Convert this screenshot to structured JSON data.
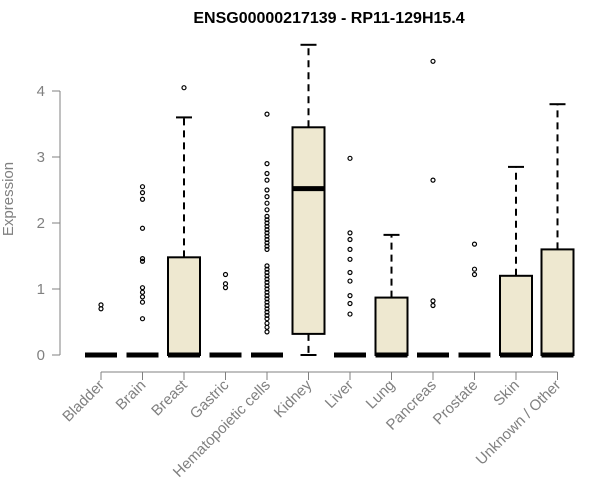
{
  "chart_data": {
    "type": "box",
    "title": "ENSG00000217139 - RP11-129H15.4",
    "xlabel": "",
    "ylabel": "Expression",
    "ylim": [
      0,
      4.7
    ],
    "yticks": [
      0,
      1,
      2,
      3,
      4
    ],
    "grid": false,
    "legend": "none",
    "categories": [
      "Bladder",
      "Brain",
      "Breast",
      "Gastric",
      "Hematopoietic cells",
      "Kidney",
      "Liver",
      "Lung",
      "Pancreas",
      "Prostate",
      "Skin",
      "Unknown / Other"
    ],
    "boxes": [
      {
        "category": "Bladder",
        "q1": 0,
        "median": 0,
        "q3": 0,
        "whisker_low": 0,
        "whisker_high": 0,
        "outliers": [
          0.7,
          0.76
        ]
      },
      {
        "category": "Brain",
        "q1": 0,
        "median": 0,
        "q3": 0,
        "whisker_low": 0,
        "whisker_high": 0,
        "outliers": [
          0.55,
          0.8,
          0.88,
          0.95,
          1.02,
          1.42,
          1.46,
          1.92,
          2.36,
          2.46,
          2.55
        ]
      },
      {
        "category": "Breast",
        "q1": 0,
        "median": 0,
        "q3": 1.48,
        "whisker_low": 0,
        "whisker_high": 3.6,
        "outliers": [
          4.05
        ]
      },
      {
        "category": "Gastric",
        "q1": 0,
        "median": 0,
        "q3": 0,
        "whisker_low": 0,
        "whisker_high": 0,
        "outliers": [
          1.02,
          1.08,
          1.22
        ]
      },
      {
        "category": "Hematopoietic cells",
        "q1": 0,
        "median": 0,
        "q3": 0,
        "whisker_low": 0,
        "whisker_high": 0,
        "outliers": [
          0.35,
          0.42,
          0.48,
          0.55,
          0.6,
          0.65,
          0.7,
          0.75,
          0.8,
          0.85,
          0.9,
          0.95,
          1.0,
          1.05,
          1.1,
          1.15,
          1.2,
          1.25,
          1.3,
          1.35,
          1.6,
          1.65,
          1.7,
          1.75,
          1.8,
          1.85,
          1.9,
          1.95,
          2.0,
          2.05,
          2.1,
          2.2,
          2.3,
          2.4,
          2.5,
          2.65,
          2.75,
          2.9,
          3.65
        ]
      },
      {
        "category": "Kidney",
        "q1": 0.32,
        "median": 2.52,
        "q3": 3.45,
        "whisker_low": 0,
        "whisker_high": 4.7,
        "outliers": []
      },
      {
        "category": "Liver",
        "q1": 0,
        "median": 0,
        "q3": 0,
        "whisker_low": 0,
        "whisker_high": 0,
        "outliers": [
          0.62,
          0.78,
          0.9,
          1.12,
          1.25,
          1.45,
          1.6,
          1.75,
          1.85,
          2.98
        ]
      },
      {
        "category": "Lung",
        "q1": 0,
        "median": 0,
        "q3": 0.87,
        "whisker_low": 0,
        "whisker_high": 1.82,
        "outliers": []
      },
      {
        "category": "Pancreas",
        "q1": 0,
        "median": 0,
        "q3": 0,
        "whisker_low": 0,
        "whisker_high": 0,
        "outliers": [
          0.75,
          0.82,
          2.65,
          4.45
        ]
      },
      {
        "category": "Prostate",
        "q1": 0,
        "median": 0,
        "q3": 0,
        "whisker_low": 0,
        "whisker_high": 0,
        "outliers": [
          1.22,
          1.3,
          1.68
        ]
      },
      {
        "category": "Skin",
        "q1": 0,
        "median": 0,
        "q3": 1.2,
        "whisker_low": 0,
        "whisker_high": 2.85,
        "outliers": []
      },
      {
        "category": "Unknown / Other",
        "q1": 0,
        "median": 0,
        "q3": 1.6,
        "whisker_low": 0,
        "whisker_high": 3.8,
        "outliers": []
      }
    ],
    "colors": {
      "box_fill": "#eee8d0",
      "box_stroke": "#000000",
      "axis": "#808080",
      "outlier": "#000000"
    }
  }
}
